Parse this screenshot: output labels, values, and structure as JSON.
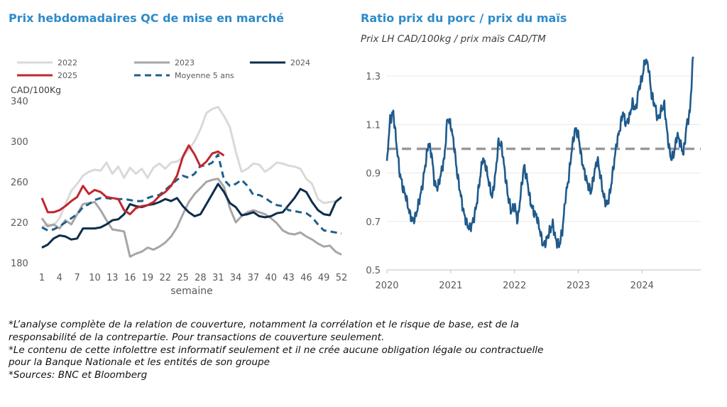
{
  "chart_data": [
    {
      "type": "line",
      "title": "Prix hebdomadaires QC de mise en marché",
      "ylabel": "CAD/100Kg",
      "xlabel": "semaine",
      "ylim": [
        180,
        340
      ],
      "xlim": [
        1,
        52
      ],
      "yticks": [
        "180",
        "220",
        "260",
        "300",
        "340"
      ],
      "xticks": [
        "1",
        "4",
        "7",
        "10",
        "13",
        "16",
        "19",
        "22",
        "25",
        "28",
        "31",
        "34",
        "37",
        "40",
        "43",
        "46",
        "49",
        "52"
      ],
      "legend": [
        "2022",
        "2023",
        "2024",
        "2025",
        "Moyenne 5 ans"
      ],
      "series": [
        {
          "name": "2022",
          "color": "#d9d9d9",
          "x": [
            1,
            2,
            3,
            4,
            5,
            6,
            7,
            8,
            9,
            10,
            11,
            12,
            13,
            14,
            15,
            16,
            17,
            18,
            19,
            20,
            21,
            22,
            23,
            24,
            25,
            26,
            27,
            28,
            29,
            30,
            31,
            32,
            33,
            34,
            35,
            36,
            37,
            38,
            39,
            40,
            41,
            42,
            43,
            44,
            45,
            46,
            47,
            48,
            49,
            50,
            51,
            52
          ],
          "y": [
            215,
            218,
            217,
            224,
            238,
            251,
            258,
            266,
            270,
            272,
            271,
            279,
            268,
            275,
            264,
            274,
            268,
            273,
            264,
            274,
            278,
            273,
            279,
            280,
            284,
            292,
            300,
            312,
            328,
            332,
            334,
            325,
            314,
            290,
            270,
            273,
            278,
            277,
            270,
            274,
            279,
            278,
            276,
            275,
            273,
            263,
            258,
            243,
            239,
            240,
            241,
            244
          ]
        },
        {
          "name": "2023",
          "color": "#a6a6a6",
          "x": [
            1,
            2,
            3,
            4,
            5,
            6,
            7,
            8,
            9,
            10,
            11,
            12,
            13,
            14,
            15,
            16,
            17,
            18,
            19,
            20,
            21,
            22,
            23,
            24,
            25,
            26,
            27,
            28,
            29,
            30,
            31,
            32,
            33,
            34,
            35,
            36,
            37,
            38,
            39,
            40,
            41,
            42,
            43,
            44,
            45,
            46,
            47,
            48,
            49,
            50,
            51,
            52
          ],
          "y": [
            224,
            216,
            218,
            214,
            222,
            218,
            228,
            238,
            239,
            240,
            232,
            222,
            213,
            212,
            211,
            186,
            189,
            191,
            195,
            193,
            196,
            200,
            206,
            215,
            228,
            240,
            248,
            254,
            260,
            262,
            263,
            255,
            234,
            220,
            226,
            230,
            232,
            230,
            228,
            224,
            219,
            212,
            209,
            208,
            210,
            206,
            203,
            199,
            196,
            197,
            191,
            188
          ]
        },
        {
          "name": "2024",
          "color": "#0d2d4b",
          "x": [
            1,
            2,
            3,
            4,
            5,
            6,
            7,
            8,
            9,
            10,
            11,
            12,
            13,
            14,
            15,
            16,
            17,
            18,
            19,
            20,
            21,
            22,
            23,
            24,
            25,
            26,
            27,
            28,
            29,
            30,
            31,
            32,
            33,
            34,
            35,
            36,
            37,
            38,
            39,
            40,
            41,
            42,
            43,
            44,
            45,
            46,
            47,
            48,
            49,
            50,
            51,
            52
          ],
          "y": [
            195,
            198,
            204,
            207,
            206,
            203,
            204,
            214,
            214,
            214,
            215,
            218,
            222,
            223,
            228,
            238,
            236,
            235,
            237,
            238,
            240,
            243,
            241,
            244,
            236,
            230,
            226,
            228,
            238,
            248,
            258,
            250,
            239,
            235,
            227,
            228,
            230,
            226,
            225,
            226,
            229,
            230,
            237,
            244,
            253,
            250,
            240,
            232,
            228,
            227,
            240,
            245
          ]
        },
        {
          "name": "2025",
          "color": "#c0272d",
          "x": [
            1,
            2,
            3,
            4,
            5,
            6,
            7,
            8,
            9,
            10,
            11,
            12,
            13,
            14,
            15,
            16,
            17,
            18,
            19,
            20,
            21,
            22,
            23,
            24,
            25,
            26,
            27,
            28,
            29,
            30,
            31,
            32
          ],
          "y": [
            244,
            230,
            230,
            232,
            236,
            241,
            245,
            256,
            248,
            252,
            250,
            245,
            244,
            243,
            232,
            228,
            234,
            236,
            237,
            240,
            246,
            250,
            256,
            266,
            285,
            296,
            287,
            275,
            280,
            288,
            290,
            286
          ]
        },
        {
          "name": "Moyenne 5 ans",
          "color": "#1f5f8b",
          "x": [
            1,
            2,
            3,
            4,
            5,
            6,
            7,
            8,
            9,
            10,
            11,
            12,
            13,
            14,
            15,
            16,
            17,
            18,
            19,
            20,
            21,
            22,
            23,
            24,
            25,
            26,
            27,
            28,
            29,
            30,
            31,
            32,
            33,
            34,
            35,
            36,
            37,
            38,
            39,
            40,
            41,
            42,
            43,
            44,
            45,
            46,
            47,
            48,
            49,
            50,
            51,
            52
          ],
          "y": [
            215,
            212,
            213,
            216,
            220,
            224,
            228,
            235,
            238,
            242,
            244,
            244,
            243,
            243,
            243,
            242,
            241,
            241,
            244,
            246,
            247,
            252,
            257,
            262,
            266,
            264,
            268,
            276,
            276,
            279,
            287,
            262,
            256,
            258,
            262,
            256,
            247,
            247,
            244,
            240,
            237,
            236,
            232,
            231,
            230,
            229,
            225,
            218,
            212,
            211,
            210,
            209
          ]
        }
      ]
    },
    {
      "type": "line",
      "title": "Ratio prix du porc / prix du maïs",
      "subtitle": "Prix LH CAD/100kg / prix maïs CAD/TM",
      "ylim": [
        0.5,
        1.4
      ],
      "yticks": [
        "0.5",
        "0.7",
        "0.9",
        "1.1",
        "1.3"
      ],
      "xticks": [
        "2020",
        "2021",
        "2022",
        "2023",
        "2024"
      ],
      "reference_line": 1.0,
      "series": [
        {
          "name": "",
          "color": "#1f5a8b",
          "x": [
            2020.0,
            2020.05,
            2020.1,
            2020.15,
            2020.2,
            2020.25,
            2020.3,
            2020.35,
            2020.4,
            2020.45,
            2020.5,
            2020.55,
            2020.6,
            2020.65,
            2020.7,
            2020.75,
            2020.8,
            2020.85,
            2020.9,
            2020.95,
            2021.0,
            2021.05,
            2021.1,
            2021.15,
            2021.2,
            2021.25,
            2021.3,
            2021.35,
            2021.4,
            2021.45,
            2021.5,
            2021.55,
            2021.6,
            2021.65,
            2021.7,
            2021.75,
            2021.8,
            2021.85,
            2021.9,
            2021.95,
            2022.0,
            2022.05,
            2022.1,
            2022.15,
            2022.2,
            2022.25,
            2022.3,
            2022.35,
            2022.4,
            2022.45,
            2022.5,
            2022.55,
            2022.6,
            2022.65,
            2022.7,
            2022.75,
            2022.8,
            2022.85,
            2022.9,
            2022.95,
            2023.0,
            2023.05,
            2023.1,
            2023.15,
            2023.2,
            2023.25,
            2023.3,
            2023.35,
            2023.4,
            2023.45,
            2023.5,
            2023.55,
            2023.6,
            2023.65,
            2023.7,
            2023.75,
            2023.8,
            2023.85,
            2023.9,
            2023.95,
            2024.0,
            2024.05,
            2024.1,
            2024.15,
            2024.2,
            2024.25,
            2024.3,
            2024.35,
            2024.4,
            2024.45,
            2024.5,
            2024.55,
            2024.6,
            2024.65,
            2024.7,
            2024.75,
            2024.8
          ],
          "y": [
            0.95,
            1.12,
            1.15,
            1.02,
            0.9,
            0.84,
            0.8,
            0.74,
            0.7,
            0.72,
            0.78,
            0.84,
            0.93,
            1.02,
            0.98,
            0.85,
            0.84,
            0.9,
            0.96,
            1.13,
            1.1,
            1.02,
            0.9,
            0.82,
            0.74,
            0.69,
            0.67,
            0.7,
            0.76,
            0.86,
            0.96,
            0.93,
            0.86,
            0.8,
            0.89,
            1.03,
            1.01,
            0.9,
            0.8,
            0.74,
            0.77,
            0.7,
            0.82,
            0.93,
            0.87,
            0.78,
            0.74,
            0.72,
            0.66,
            0.6,
            0.62,
            0.66,
            0.69,
            0.62,
            0.6,
            0.66,
            0.8,
            0.88,
            1.0,
            1.08,
            1.06,
            0.96,
            0.9,
            0.85,
            0.82,
            0.9,
            0.96,
            0.88,
            0.8,
            0.77,
            0.82,
            0.92,
            1.02,
            1.08,
            1.15,
            1.1,
            1.13,
            1.19,
            1.16,
            1.25,
            1.29,
            1.37,
            1.34,
            1.22,
            1.18,
            1.12,
            1.16,
            1.18,
            1.05,
            0.96,
            0.98,
            1.06,
            1.02,
            0.98,
            1.1,
            1.15,
            1.38
          ]
        }
      ]
    }
  ],
  "notes": [
    "*L’analyse complète de la relation de couverture, notamment la corrélation et le risque de base, est de la",
    "responsabilité de la contrepartie. Pour transactions de couverture seulement.",
    "*Le contenu de cette infolettre est informatif seulement et il ne crée aucune obligation légale ou contractuelle",
    "pour la Banque Nationale et les entités de son groupe",
    "*Sources: BNC et Bloomberg"
  ]
}
